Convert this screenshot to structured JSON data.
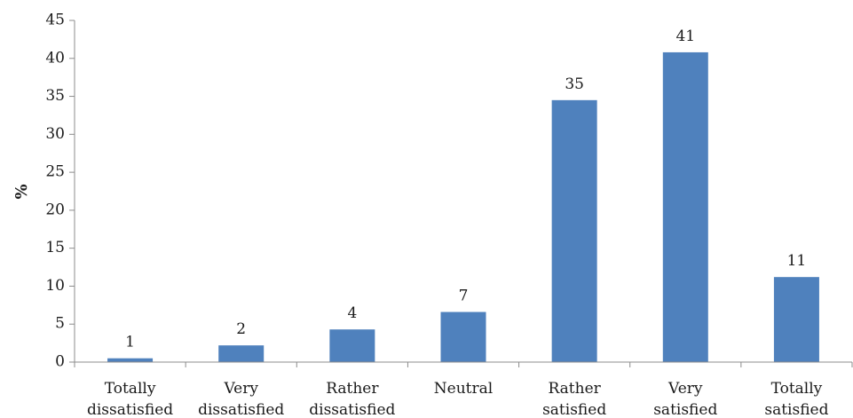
{
  "chart_data": {
    "type": "bar",
    "title": "",
    "xlabel": "",
    "ylabel": "%",
    "ylim": [
      0,
      45
    ],
    "yticks": [
      0,
      5,
      10,
      15,
      20,
      25,
      30,
      35,
      40,
      45
    ],
    "grid": false,
    "legend": "none",
    "bar_color": "#4f81bd",
    "categories": [
      [
        "Totally",
        "dissatisfied"
      ],
      [
        "Very",
        "dissatisfied"
      ],
      [
        "Rather",
        "dissatisfied"
      ],
      [
        "Neutral"
      ],
      [
        "Rather",
        "satisfied"
      ],
      [
        "Very",
        "satisfied"
      ],
      [
        "Totally",
        "satisfied"
      ]
    ],
    "values": [
      0.5,
      2.2,
      4.3,
      6.6,
      34.5,
      40.8,
      11.2
    ],
    "data_labels": [
      "1",
      "2",
      "4",
      "7",
      "35",
      "41",
      "11"
    ]
  }
}
